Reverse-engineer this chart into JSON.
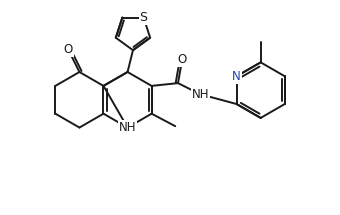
{
  "bg_color": "#ffffff",
  "line_color": "#1a1a1a",
  "line_width": 1.4,
  "figsize": [
    3.4,
    2.15
  ],
  "dpi": 100,
  "xlim": [
    0,
    8.5
  ],
  "ylim": [
    0,
    5.5
  ]
}
